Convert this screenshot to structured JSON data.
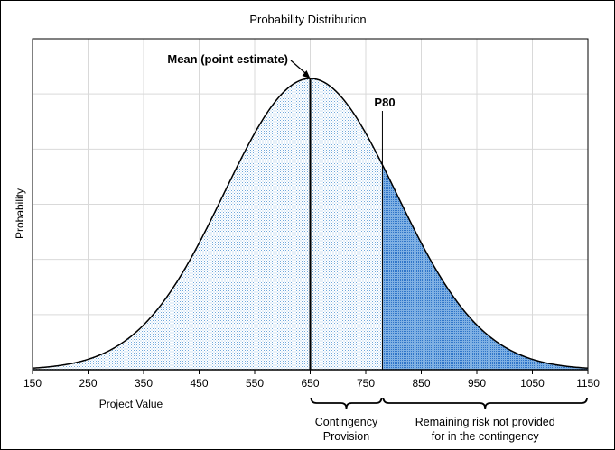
{
  "chart_data": {
    "type": "area",
    "title": "Probability Distribution",
    "xlabel": "Project Value",
    "ylabel": "Probability",
    "xlim": [
      150,
      1150
    ],
    "x_ticks": [
      150,
      250,
      350,
      450,
      550,
      650,
      750,
      850,
      950,
      1050,
      1150
    ],
    "ylim": [
      0,
      6
    ],
    "y_gridlines": 6,
    "grid": true,
    "distribution": {
      "kind": "normal",
      "mean": 650,
      "sd": 155,
      "peak_height": 5.28
    },
    "markers": [
      {
        "label": "Mean (point estimate)",
        "x": 650
      },
      {
        "label": "P80",
        "x": 780
      }
    ],
    "regions": [
      {
        "name": "below-p80",
        "from": 150,
        "to": 780,
        "color": "#9dc3e6"
      },
      {
        "name": "above-p80",
        "from": 780,
        "to": 1150,
        "color": "#4a8fd4"
      }
    ],
    "braces": [
      {
        "label_line1": "Contingency",
        "label_line2": "Provision",
        "from": 650,
        "to": 780
      },
      {
        "label_line1": "Remaining risk not provided",
        "label_line2": "for in the contingency",
        "from": 780,
        "to": 1150
      }
    ]
  }
}
